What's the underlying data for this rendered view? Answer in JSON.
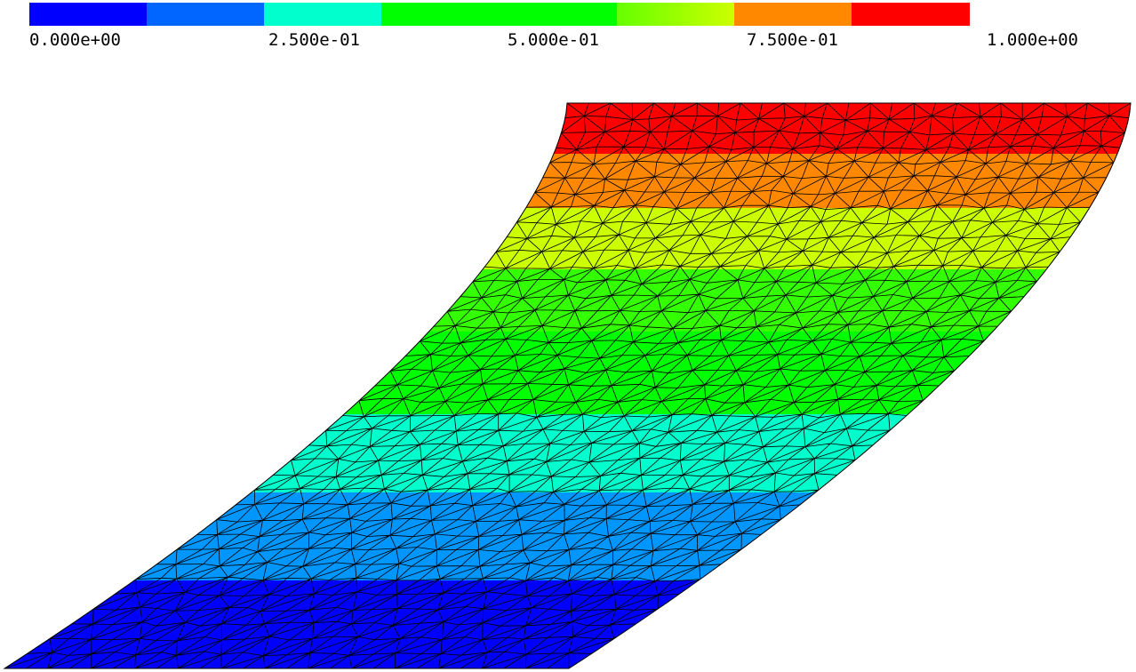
{
  "legend": {
    "segments": [
      {
        "from": 0.0,
        "to": 0.125,
        "color": "#0000ff"
      },
      {
        "from": 0.125,
        "to": 0.25,
        "color": "#0066ff"
      },
      {
        "from": 0.25,
        "to": 0.375,
        "color": "#00ffcc"
      },
      {
        "from": 0.375,
        "to": 0.625,
        "color": "#00ff00"
      },
      {
        "from": 0.625,
        "to": 0.75,
        "color": "#ccff00"
      },
      {
        "from": 0.75,
        "to": 0.875,
        "color": "#ff8800"
      },
      {
        "from": 0.875,
        "to": 1.0,
        "color": "#ff0000"
      }
    ],
    "ticks": [
      {
        "value": 0.0,
        "label": "0.000e+00"
      },
      {
        "value": 0.25,
        "label": "2.500e-01"
      },
      {
        "value": 0.5,
        "label": "5.000e-01"
      },
      {
        "value": 0.75,
        "label": "7.500e-01"
      },
      {
        "value": 1.0,
        "label": "1.000e+00"
      }
    ]
  },
  "mesh": {
    "edge_color": "#000000",
    "gradient_direction": "bottom-to-top",
    "bands": [
      {
        "level": "0.000e+00 – 1.250e-01",
        "color": "#0000ff"
      },
      {
        "level": "1.250e-01 – 2.500e-01",
        "color": "#0096ff"
      },
      {
        "level": "2.500e-01 – 3.750e-01",
        "color": "#00ffcc"
      },
      {
        "level": "3.750e-01 – 5.000e-01",
        "color": "#00ff00"
      },
      {
        "level": "5.000e-01 – 6.250e-01",
        "color": "#33ff00"
      },
      {
        "level": "6.250e-01 – 7.500e-01",
        "color": "#ccff00"
      },
      {
        "level": "7.500e-01 – 8.750e-01",
        "color": "#ff8800"
      },
      {
        "level": "8.750e-01 – 1.000e+00",
        "color": "#ff0000"
      }
    ]
  }
}
